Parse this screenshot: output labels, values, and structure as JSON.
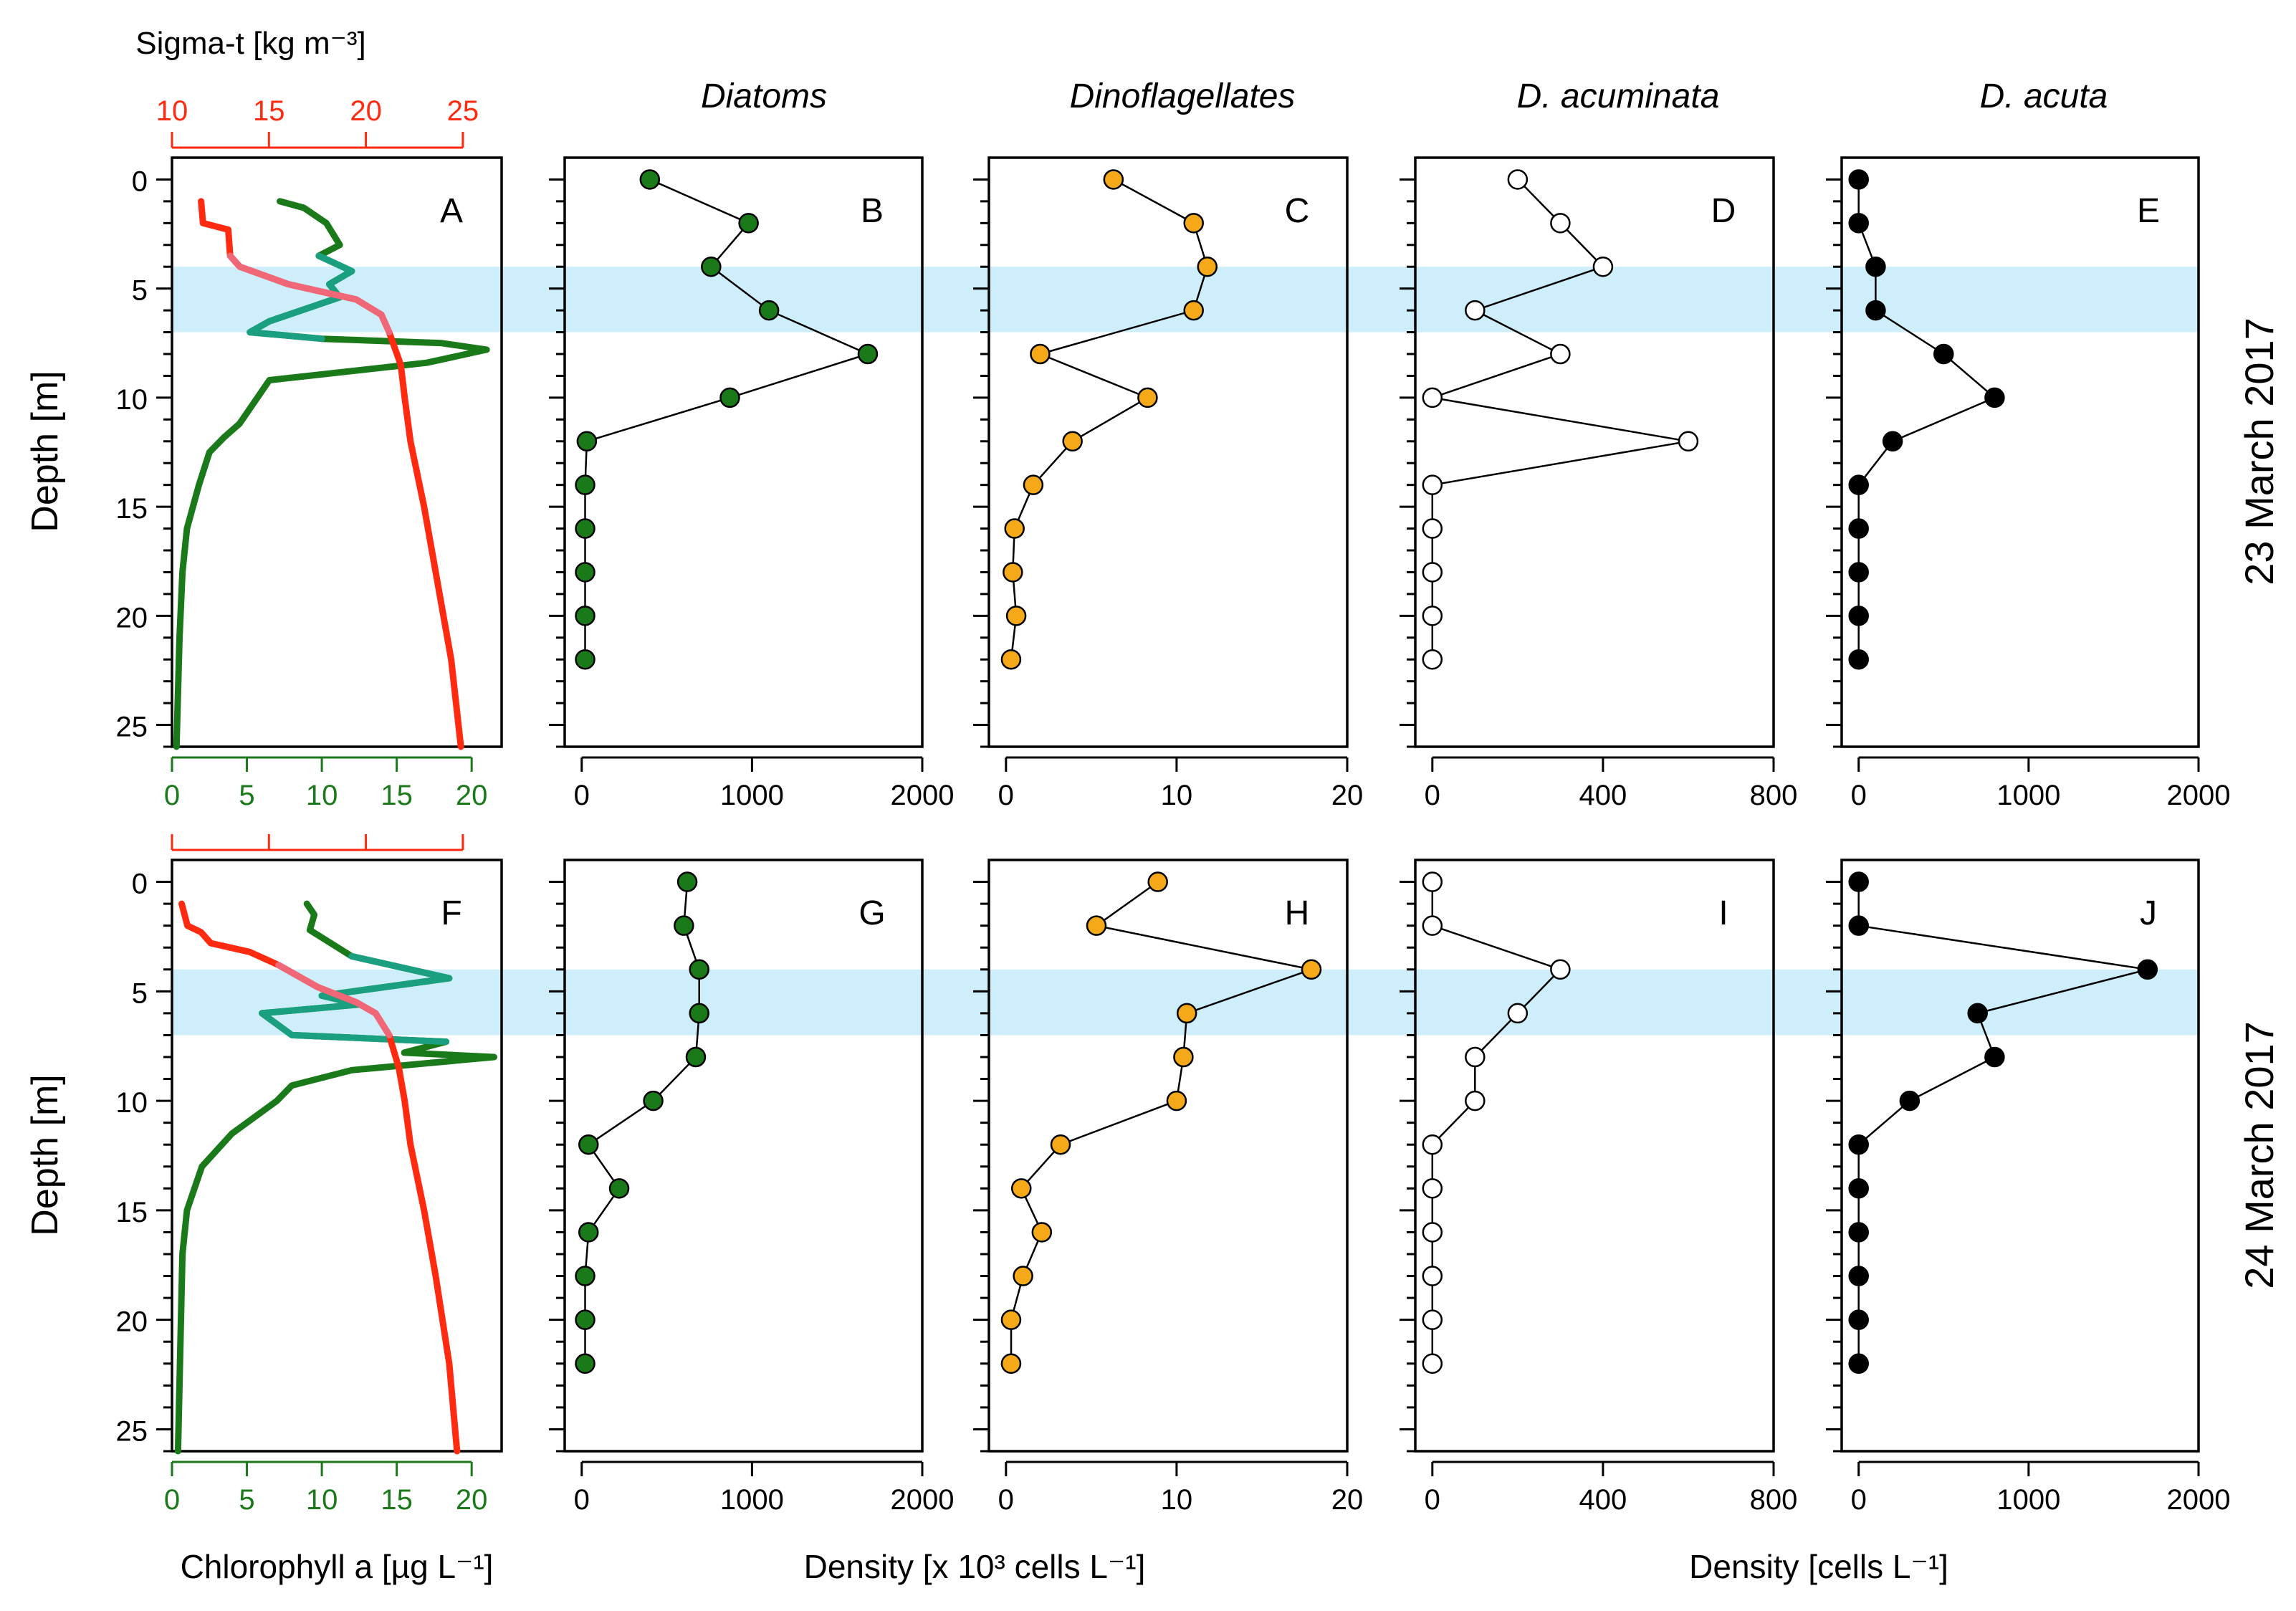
{
  "colors": {
    "green": "#1a7a1a",
    "red": "#ff2a10",
    "pink": "#f06878",
    "teal": "#1aa080",
    "orange": "#f5a818",
    "band": "#cdeefa"
  },
  "rows": [
    {
      "label": "23 March 2017"
    },
    {
      "label": "24 March 2017"
    }
  ],
  "column_titles": [
    "Diatoms",
    "Dinoflagellates",
    "D. acuminata",
    "D. acuta"
  ],
  "axis": {
    "depth_label": "Depth [m]",
    "chl_label": "Chlorophyll a [µg L⁻¹]",
    "sigma_label": "Sigma-t [kg m⁻³]",
    "density1000_label": "Density [x 10³ cells L⁻¹]",
    "density_label": "Density [cells L⁻¹]"
  },
  "chart_data": [
    {
      "type": "line",
      "panel": "A",
      "row": 0,
      "title": "Depth profiles of chlorophyll a and sigma-t",
      "ylabel": "Depth [m]",
      "ylim": [
        26,
        -1
      ],
      "y_ticks": [
        0,
        5,
        10,
        15,
        20,
        25
      ],
      "xlabel": "Chlorophyll a [µg L⁻¹]",
      "xlim": [
        0,
        22
      ],
      "x_ticks": [
        0,
        5,
        10,
        15,
        20
      ],
      "top_axis": {
        "label": "Sigma-t [kg m⁻³]",
        "ticks": [
          10,
          15,
          20,
          25
        ],
        "range": [
          10,
          27
        ]
      },
      "shaded_depth": [
        4,
        7
      ],
      "series": [
        {
          "name": "Chlorophyll a",
          "color": "green",
          "points": [
            [
              7.2,
              1
            ],
            [
              8.8,
              1.3
            ],
            [
              10.3,
              2
            ],
            [
              11.2,
              3
            ],
            [
              9.8,
              3.5
            ],
            [
              12,
              4.2
            ],
            [
              10.5,
              4.8
            ],
            [
              11.2,
              5.4
            ],
            [
              6.5,
              6.5
            ],
            [
              5.2,
              7
            ],
            [
              10,
              7.3
            ],
            [
              18,
              7.5
            ],
            [
              21,
              7.8
            ],
            [
              17,
              8.4
            ],
            [
              6.5,
              9.2
            ],
            [
              5.5,
              10.2
            ],
            [
              4.5,
              11.2
            ],
            [
              3.5,
              11.8
            ],
            [
              2.5,
              12.5
            ],
            [
              1.8,
              14
            ],
            [
              1,
              16
            ],
            [
              0.7,
              18
            ],
            [
              0.5,
              21
            ],
            [
              0.3,
              26
            ]
          ]
        },
        {
          "name": "Sigma-t",
          "axis": "top",
          "color": "red",
          "points": [
            [
              11.5,
              1
            ],
            [
              11.6,
              2
            ],
            [
              12.9,
              2.3
            ],
            [
              13,
              3.5
            ],
            [
              13.5,
              4
            ],
            [
              16,
              4.8
            ],
            [
              19.5,
              5.5
            ],
            [
              20.8,
              6.2
            ],
            [
              21.2,
              7
            ],
            [
              21.8,
              8.5
            ],
            [
              22,
              10
            ],
            [
              22.3,
              12
            ],
            [
              23,
              15
            ],
            [
              23.6,
              18
            ],
            [
              24.4,
              22
            ],
            [
              24.9,
              26
            ]
          ]
        }
      ]
    },
    {
      "type": "line",
      "panel": "F",
      "row": 1,
      "title": "Depth profiles of chlorophyll a and sigma-t",
      "ylabel": "Depth [m]",
      "ylim": [
        26,
        -1
      ],
      "y_ticks": [
        0,
        5,
        10,
        15,
        20,
        25
      ],
      "xlabel": "Chlorophyll a [µg L⁻¹]",
      "xlim": [
        0,
        22
      ],
      "x_ticks": [
        0,
        5,
        10,
        15,
        20
      ],
      "top_axis": {
        "label": "Sigma-t [kg m⁻³]",
        "ticks": [
          10,
          15,
          20,
          25
        ],
        "range": [
          10,
          27
        ]
      },
      "shaded_depth": [
        4,
        7
      ],
      "series": [
        {
          "name": "Chlorophyll a",
          "color": "green",
          "points": [
            [
              9,
              1
            ],
            [
              9.5,
              1.5
            ],
            [
              9.2,
              2.2
            ],
            [
              12,
              3.4
            ],
            [
              18.5,
              4.4
            ],
            [
              10,
              5.2
            ],
            [
              12.5,
              5.6
            ],
            [
              6,
              6
            ],
            [
              8,
              7
            ],
            [
              18.3,
              7.3
            ],
            [
              15.5,
              7.8
            ],
            [
              21.5,
              8
            ],
            [
              12,
              8.6
            ],
            [
              8,
              9.3
            ],
            [
              7,
              10
            ],
            [
              4,
              11.5
            ],
            [
              2,
              13
            ],
            [
              1,
              15
            ],
            [
              0.7,
              17
            ],
            [
              0.6,
              20
            ],
            [
              0.4,
              26
            ]
          ]
        },
        {
          "name": "Sigma-t",
          "axis": "top",
          "color": "red",
          "points": [
            [
              10.5,
              1
            ],
            [
              10.8,
              2
            ],
            [
              11.5,
              2.3
            ],
            [
              12,
              2.8
            ],
            [
              14,
              3.2
            ],
            [
              15.5,
              3.8
            ],
            [
              17.5,
              4.8
            ],
            [
              19.5,
              5.5
            ],
            [
              20.5,
              6
            ],
            [
              21.2,
              7
            ],
            [
              21.7,
              8.5
            ],
            [
              22,
              10
            ],
            [
              22.3,
              12
            ],
            [
              23,
              15
            ],
            [
              23.6,
              18
            ],
            [
              24.3,
              22
            ],
            [
              24.7,
              26
            ]
          ]
        }
      ]
    },
    {
      "type": "line",
      "panel": "B",
      "row": 0,
      "title": "Diatoms",
      "xlabel": "Density [x 10³ cells L⁻¹]",
      "xlim": [
        -100,
        2000
      ],
      "x_ticks": [
        0,
        1000,
        2000
      ],
      "ylim": [
        26,
        -1
      ],
      "marker": "green",
      "points": [
        [
          400,
          0
        ],
        [
          980,
          2
        ],
        [
          760,
          4
        ],
        [
          1100,
          6
        ],
        [
          1680,
          8
        ],
        [
          870,
          10
        ],
        [
          30,
          12
        ],
        [
          20,
          14
        ],
        [
          20,
          16
        ],
        [
          20,
          18
        ],
        [
          20,
          20
        ],
        [
          20,
          22
        ]
      ]
    },
    {
      "type": "line",
      "panel": "G",
      "row": 1,
      "title": "Diatoms",
      "xlabel": "Density [x 10³ cells L⁻¹]",
      "xlim": [
        -100,
        2000
      ],
      "x_ticks": [
        0,
        1000,
        2000
      ],
      "ylim": [
        26,
        -1
      ],
      "marker": "green",
      "points": [
        [
          620,
          0
        ],
        [
          600,
          2
        ],
        [
          690,
          4
        ],
        [
          690,
          6
        ],
        [
          670,
          8
        ],
        [
          420,
          10
        ],
        [
          40,
          12
        ],
        [
          220,
          14
        ],
        [
          40,
          16
        ],
        [
          20,
          18
        ],
        [
          20,
          20
        ],
        [
          20,
          22
        ]
      ]
    },
    {
      "type": "line",
      "panel": "C",
      "row": 0,
      "title": "Dinoflagellates",
      "xlabel": "Density [x 10³ cells L⁻¹]",
      "xlim": [
        -1,
        20
      ],
      "x_ticks": [
        0,
        10,
        20
      ],
      "ylim": [
        26,
        -1
      ],
      "marker": "orange",
      "points": [
        [
          6.3,
          0
        ],
        [
          11,
          2
        ],
        [
          11.8,
          4
        ],
        [
          11,
          6
        ],
        [
          2,
          8
        ],
        [
          8.3,
          10
        ],
        [
          3.9,
          12
        ],
        [
          1.6,
          14
        ],
        [
          0.5,
          16
        ],
        [
          0.4,
          18
        ],
        [
          0.6,
          20
        ],
        [
          0.3,
          22
        ]
      ]
    },
    {
      "type": "line",
      "panel": "H",
      "row": 1,
      "title": "Dinoflagellates",
      "xlabel": "Density [x 10³ cells L⁻¹]",
      "xlim": [
        -1,
        20
      ],
      "x_ticks": [
        0,
        10,
        20
      ],
      "ylim": [
        26,
        -1
      ],
      "marker": "orange",
      "points": [
        [
          8.9,
          0
        ],
        [
          5.3,
          2
        ],
        [
          17.9,
          4
        ],
        [
          10.6,
          6
        ],
        [
          10.4,
          8
        ],
        [
          10,
          10
        ],
        [
          3.2,
          12
        ],
        [
          0.9,
          14
        ],
        [
          2.1,
          16
        ],
        [
          1,
          18
        ],
        [
          0.3,
          20
        ],
        [
          0.3,
          22
        ]
      ]
    },
    {
      "type": "line",
      "panel": "D",
      "row": 0,
      "title": "D. acuminata",
      "xlabel": "Density [cells L⁻¹]",
      "xlim": [
        -40,
        800
      ],
      "x_ticks": [
        0,
        400,
        800
      ],
      "ylim": [
        26,
        -1
      ],
      "marker": "white",
      "points": [
        [
          200,
          0
        ],
        [
          300,
          2
        ],
        [
          400,
          4
        ],
        [
          100,
          6
        ],
        [
          300,
          8
        ],
        [
          0,
          10
        ],
        [
          600,
          12
        ],
        [
          0,
          14
        ],
        [
          0,
          16
        ],
        [
          0,
          18
        ],
        [
          0,
          20
        ],
        [
          0,
          22
        ]
      ]
    },
    {
      "type": "line",
      "panel": "I",
      "row": 1,
      "title": "D. acuminata",
      "xlabel": "Density [cells L⁻¹]",
      "xlim": [
        -40,
        800
      ],
      "x_ticks": [
        0,
        400,
        800
      ],
      "ylim": [
        26,
        -1
      ],
      "marker": "white",
      "points": [
        [
          0,
          0
        ],
        [
          0,
          2
        ],
        [
          300,
          4
        ],
        [
          200,
          6
        ],
        [
          100,
          8
        ],
        [
          100,
          10
        ],
        [
          0,
          12
        ],
        [
          0,
          14
        ],
        [
          0,
          16
        ],
        [
          0,
          18
        ],
        [
          0,
          20
        ],
        [
          0,
          22
        ]
      ]
    },
    {
      "type": "line",
      "panel": "E",
      "row": 0,
      "title": "D. acuta",
      "xlabel": "Density [cells L⁻¹]",
      "xlim": [
        -100,
        2000
      ],
      "x_ticks": [
        0,
        1000,
        2000
      ],
      "ylim": [
        26,
        -1
      ],
      "marker": "black",
      "points": [
        [
          0,
          0
        ],
        [
          0,
          2
        ],
        [
          100,
          4
        ],
        [
          100,
          6
        ],
        [
          500,
          8
        ],
        [
          800,
          10
        ],
        [
          200,
          12
        ],
        [
          0,
          14
        ],
        [
          0,
          16
        ],
        [
          0,
          18
        ],
        [
          0,
          20
        ],
        [
          0,
          22
        ]
      ]
    },
    {
      "type": "line",
      "panel": "J",
      "row": 1,
      "title": "D. acuta",
      "xlabel": "Density [cells L⁻¹]",
      "xlim": [
        -100,
        2000
      ],
      "x_ticks": [
        0,
        1000,
        2000
      ],
      "ylim": [
        26,
        -1
      ],
      "marker": "black",
      "points": [
        [
          0,
          0
        ],
        [
          0,
          2
        ],
        [
          1700,
          4
        ],
        [
          700,
          6
        ],
        [
          800,
          8
        ],
        [
          300,
          10
        ],
        [
          0,
          12
        ],
        [
          0,
          14
        ],
        [
          0,
          16
        ],
        [
          0,
          18
        ],
        [
          0,
          20
        ],
        [
          0,
          22
        ]
      ]
    }
  ]
}
